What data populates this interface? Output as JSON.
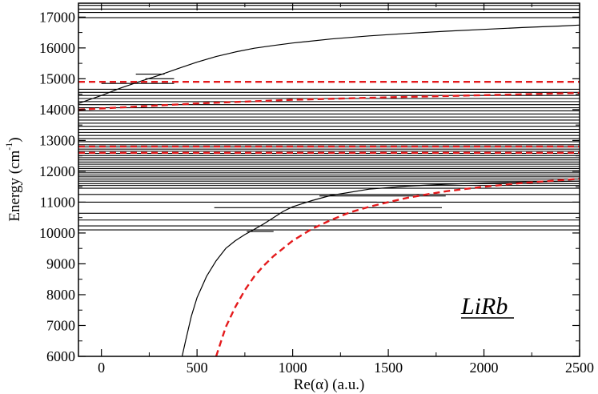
{
  "chart_data": {
    "type": "line",
    "title": "",
    "xlabel": "Re(α) (a.u.)",
    "ylabel": "Energy (cm⁻¹)",
    "ylabel_base": "Energy (cm",
    "ylabel_sup": "-1",
    "ylabel_end": ")",
    "xlim": [
      -120,
      2500
    ],
    "ylim": [
      6000,
      17450
    ],
    "x_ticks": [
      0,
      500,
      1000,
      1500,
      2000,
      2500
    ],
    "x_tick_labels": [
      "0",
      "500",
      "1000",
      "1500",
      "2000",
      "2500"
    ],
    "y_ticks": [
      6000,
      7000,
      8000,
      9000,
      10000,
      11000,
      12000,
      13000,
      14000,
      15000,
      16000,
      17000
    ],
    "y_tick_labels": [
      "6000",
      "7000",
      "8000",
      "9000",
      "10000",
      "11000",
      "12000",
      "13000",
      "14000",
      "15000",
      "16000",
      "17000"
    ],
    "grid": false,
    "legend": "none",
    "annotation": "LiRb",
    "series": [
      {
        "color": "#000000",
        "style": "solid",
        "kind": "horizontal_levels",
        "y": [
          10100,
          10230,
          10420,
          10640,
          11000,
          11250,
          11450,
          11540,
          11600,
          11680,
          11750,
          11820,
          11880,
          11950,
          12020,
          12090,
          12160,
          12230,
          12300,
          12370,
          12440,
          12510,
          12580,
          12650,
          12720,
          12790,
          12860,
          12960,
          13060,
          13160,
          13260,
          13360,
          13460,
          13560,
          13660,
          13760,
          13860,
          13960,
          14060,
          14160,
          14260,
          14360,
          14460,
          14560,
          14660,
          16980,
          17150,
          17260,
          17380
        ]
      },
      {
        "color": "#000000",
        "style": "solid",
        "kind": "partial_segments",
        "segments": [
          {
            "x": [
              180,
              330
            ],
            "y": 15150
          },
          {
            "x": [
              230,
              380
            ],
            "y": 15000
          },
          {
            "x": [
              0,
              380
            ],
            "y": 14850
          },
          {
            "x": [
              590,
              1780
            ],
            "y": 10820
          },
          {
            "x": [
              880,
              1440
            ],
            "y": 11000
          },
          {
            "x": [
              1140,
              1800
            ],
            "y": 11200
          },
          {
            "x": [
              760,
              900
            ],
            "y": 10050
          }
        ]
      },
      {
        "color": "#000000",
        "style": "solid",
        "x": [
          -120,
          0,
          100,
          200,
          300,
          400,
          500,
          600,
          700,
          800,
          900,
          1000,
          1200,
          1400,
          1600,
          1800,
          2000,
          2200,
          2400,
          2500
        ],
        "y": [
          14200,
          14460,
          14700,
          14910,
          15110,
          15330,
          15540,
          15720,
          15870,
          15990,
          16080,
          16160,
          16290,
          16390,
          16470,
          16540,
          16600,
          16660,
          16710,
          16740
        ]
      },
      {
        "color": "#000000",
        "style": "solid",
        "x": [
          422,
          440,
          470,
          500,
          550,
          600,
          650,
          700,
          750,
          800,
          850,
          900,
          950,
          1000,
          1100,
          1200,
          1400,
          1600,
          1800,
          2000,
          2200,
          2500
        ],
        "y": [
          6000,
          6500,
          7300,
          7900,
          8600,
          9100,
          9500,
          9750,
          9950,
          10120,
          10300,
          10500,
          10700,
          10850,
          11050,
          11220,
          11420,
          11520,
          11580,
          11620,
          11650,
          11680
        ]
      },
      {
        "color": "#e41a1c",
        "style": "dashed",
        "x": [
          600,
          650,
          700,
          750,
          800,
          850,
          900,
          1000,
          1100,
          1200,
          1300,
          1400,
          1500,
          1600,
          1700,
          1800,
          2000,
          2200,
          2500
        ],
        "y": [
          6000,
          6950,
          7600,
          8150,
          8600,
          8950,
          9250,
          9750,
          10130,
          10420,
          10670,
          10850,
          11000,
          11140,
          11250,
          11350,
          11500,
          11620,
          11760
        ]
      },
      {
        "color": "#e41a1c",
        "style": "dashed",
        "x": [
          -120,
          500,
          1000,
          1500,
          2000,
          2500
        ],
        "y": [
          14000,
          14200,
          14320,
          14400,
          14470,
          14540
        ]
      },
      {
        "color": "#e41a1c",
        "style": "dashed",
        "x": [
          -120,
          2500
        ],
        "y": [
          14900,
          14900
        ]
      },
      {
        "color": "#e41a1c",
        "style": "dashed",
        "x": [
          -120,
          2500
        ],
        "y": [
          12800,
          12800
        ]
      },
      {
        "color": "#e41a1c",
        "style": "dashed",
        "x": [
          -120,
          2500
        ],
        "y": [
          12600,
          12600
        ]
      }
    ]
  }
}
